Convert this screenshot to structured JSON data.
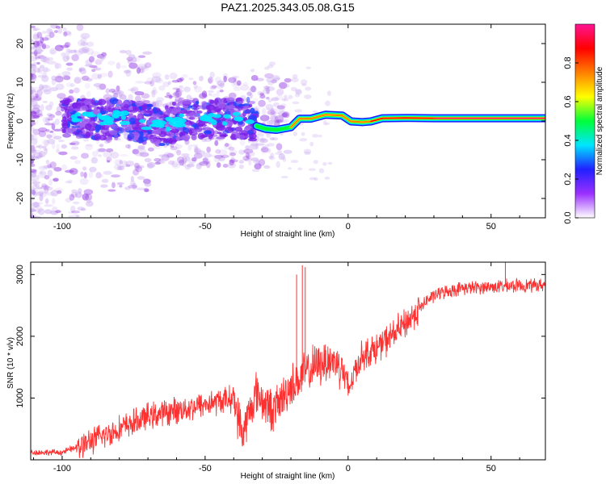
{
  "title": "PAZ1.2025.343.05.08.G15",
  "spectrogram": {
    "type": "heatmap",
    "xlabel": "Height of straight line (km)",
    "ylabel": "Frequency (Hz)",
    "xlim": [
      -111,
      69
    ],
    "ylim": [
      -25,
      25
    ],
    "xticks": [
      -100,
      -50,
      0,
      50
    ],
    "yticks": [
      -20,
      -10,
      0,
      10,
      20
    ],
    "ridge": [
      [
        -96,
        0.6
      ],
      [
        -90,
        0.8
      ],
      [
        -85,
        0.2
      ],
      [
        -80,
        1.0
      ],
      [
        -75,
        0.0
      ],
      [
        -70,
        -0.8
      ],
      [
        -65,
        -1.3
      ],
      [
        -60,
        0.1
      ],
      [
        -55,
        0.2
      ],
      [
        -50,
        0.4
      ],
      [
        -45,
        0.5
      ],
      [
        -40,
        0.6
      ],
      [
        -35,
        0.8
      ],
      [
        -32,
        -1.3
      ],
      [
        -29,
        -2.0
      ],
      [
        -25,
        -2.3
      ],
      [
        -20,
        -1.6
      ],
      [
        -17,
        0.6
      ],
      [
        -13,
        0.6
      ],
      [
        -8,
        1.6
      ],
      [
        -5,
        1.5
      ],
      [
        -2,
        1.4
      ],
      [
        1,
        -0.1
      ],
      [
        5,
        -0.3
      ],
      [
        8,
        -0.1
      ],
      [
        12,
        0.7
      ],
      [
        20,
        0.8
      ],
      [
        30,
        0.7
      ],
      [
        40,
        0.7
      ],
      [
        50,
        0.7
      ],
      [
        60,
        0.7
      ],
      [
        69,
        0.7
      ]
    ],
    "colorbar": {
      "label": "Normalized spectral amplitude",
      "ticks": [
        0.0,
        0.2,
        0.4,
        0.6,
        0.8
      ],
      "colors": [
        "#ffffff",
        "#9b30ff",
        "#2020ff",
        "#00e5ff",
        "#00ff3a",
        "#ffff00",
        "#ff7f00",
        "#ff0000",
        "#ff1493"
      ]
    }
  },
  "snr": {
    "type": "line",
    "xlabel": "Height of straight line (km)",
    "ylabel": "SNR (10 * v/v)",
    "xlim": [
      -111,
      69
    ],
    "ylim": [
      0,
      3200
    ],
    "xticks": [
      -100,
      -50,
      0,
      50
    ],
    "yticks": [
      1000,
      2000,
      3000
    ],
    "color": "#ff3030",
    "trend": [
      [
        -111,
        120
      ],
      [
        -100,
        120
      ],
      [
        -95,
        200
      ],
      [
        -90,
        300
      ],
      [
        -85,
        400
      ],
      [
        -80,
        500
      ],
      [
        -75,
        600
      ],
      [
        -70,
        700
      ],
      [
        -65,
        750
      ],
      [
        -60,
        800
      ],
      [
        -55,
        850
      ],
      [
        -50,
        900
      ],
      [
        -45,
        950
      ],
      [
        -40,
        1000
      ],
      [
        -37,
        400
      ],
      [
        -35,
        700
      ],
      [
        -32,
        1100
      ],
      [
        -29,
        900
      ],
      [
        -26,
        800
      ],
      [
        -23,
        1000
      ],
      [
        -20,
        1200
      ],
      [
        -17,
        1300
      ],
      [
        -15,
        1400
      ],
      [
        -12,
        1500
      ],
      [
        -8,
        1600
      ],
      [
        -5,
        1600
      ],
      [
        -2,
        1500
      ],
      [
        0,
        1100
      ],
      [
        2,
        1400
      ],
      [
        5,
        1700
      ],
      [
        10,
        1800
      ],
      [
        15,
        2000
      ],
      [
        20,
        2200
      ],
      [
        25,
        2450
      ],
      [
        28,
        2600
      ],
      [
        32,
        2700
      ],
      [
        40,
        2780
      ],
      [
        50,
        2800
      ],
      [
        60,
        2820
      ],
      [
        69,
        2830
      ]
    ],
    "spikes": [
      [
        -16,
        3150
      ],
      [
        -15,
        3120
      ],
      [
        55,
        3200
      ],
      [
        -18,
        3000
      ]
    ]
  }
}
